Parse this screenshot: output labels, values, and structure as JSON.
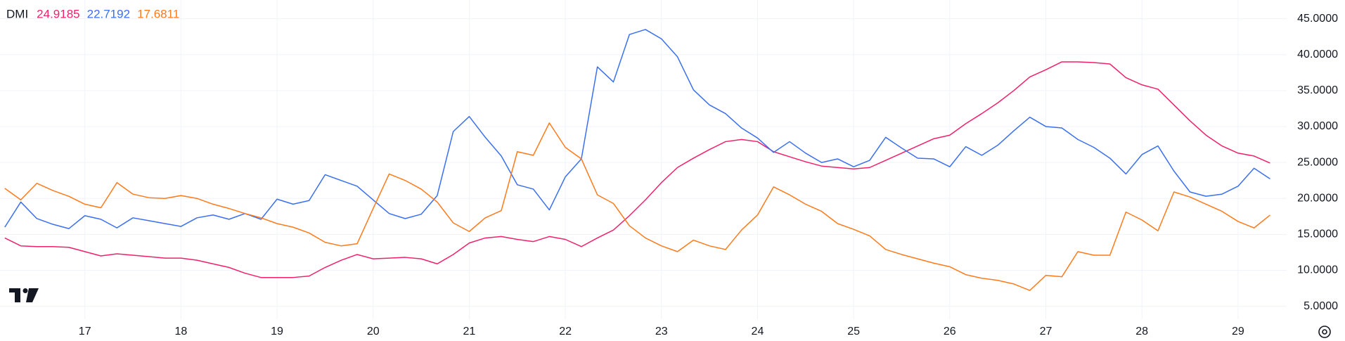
{
  "chart_data": {
    "type": "line",
    "title": "DMI",
    "categories": [
      null,
      null,
      null,
      null,
      null,
      "17",
      null,
      null,
      null,
      null,
      null,
      "18",
      null,
      null,
      null,
      null,
      null,
      "19",
      null,
      null,
      null,
      null,
      null,
      "20",
      null,
      null,
      null,
      null,
      null,
      "21",
      null,
      null,
      null,
      null,
      null,
      "22",
      null,
      null,
      null,
      null,
      null,
      "23",
      null,
      null,
      null,
      null,
      null,
      "24",
      null,
      null,
      null,
      null,
      null,
      "25",
      null,
      null,
      null,
      null,
      null,
      "26",
      null,
      null,
      null,
      null,
      null,
      "27",
      null,
      null,
      null,
      null,
      null,
      "28",
      null,
      null,
      null,
      null,
      null,
      "29",
      null,
      null
    ],
    "series": [
      {
        "color": "#f0216a",
        "values": [
          14.5,
          13.4,
          13.3,
          13.3,
          13.2,
          12.6,
          12.0,
          12.3,
          12.1,
          11.9,
          11.7,
          11.7,
          11.4,
          10.9,
          10.4,
          9.6,
          9.0,
          9.0,
          9.0,
          9.2,
          10.4,
          11.4,
          12.2,
          11.6,
          11.7,
          11.8,
          11.6,
          10.9,
          12.2,
          13.8,
          14.5,
          14.7,
          14.3,
          14.0,
          14.7,
          14.3,
          13.3,
          14.5,
          15.6,
          17.6,
          19.8,
          22.2,
          24.3,
          25.6,
          26.8,
          27.9,
          28.2,
          27.9,
          26.5,
          25.8,
          25.1,
          24.5,
          24.3,
          24.1,
          24.3,
          25.3,
          26.3,
          27.3,
          28.3,
          28.8,
          30.4,
          31.8,
          33.3,
          35.0,
          36.9,
          37.9,
          39.0,
          39.0,
          38.9,
          38.7,
          36.8,
          35.8,
          35.2,
          33.0,
          30.8,
          28.8,
          27.3,
          26.3,
          25.9,
          24.9185
        ]
      },
      {
        "color": "#3a6ff0",
        "values": [
          16.0,
          19.5,
          17.2,
          16.4,
          15.8,
          17.6,
          17.1,
          15.9,
          17.3,
          16.9,
          16.5,
          16.1,
          17.3,
          17.7,
          17.1,
          17.9,
          17.1,
          19.9,
          19.2,
          19.7,
          23.3,
          22.5,
          21.7,
          19.8,
          17.9,
          17.2,
          17.8,
          20.4,
          29.3,
          31.4,
          28.5,
          25.9,
          21.9,
          21.3,
          18.4,
          23.0,
          25.5,
          38.3,
          36.2,
          42.8,
          43.5,
          42.2,
          39.7,
          35.1,
          33.0,
          31.8,
          29.8,
          28.4,
          26.4,
          27.9,
          26.3,
          25.0,
          25.5,
          24.4,
          25.3,
          28.5,
          27.0,
          25.6,
          25.5,
          24.4,
          27.2,
          26.0,
          27.4,
          29.4,
          31.3,
          30.0,
          29.8,
          28.2,
          27.1,
          25.6,
          23.4,
          26.1,
          27.3,
          23.8,
          20.9,
          20.3,
          20.6,
          21.7,
          24.2,
          22.7192
        ]
      },
      {
        "color": "#ff7a1a",
        "values": [
          21.4,
          19.8,
          22.1,
          21.1,
          20.3,
          19.2,
          18.7,
          22.2,
          20.6,
          20.1,
          20.0,
          20.4,
          20.0,
          19.2,
          18.6,
          17.9,
          17.3,
          16.5,
          16.0,
          15.2,
          13.9,
          13.4,
          13.7,
          18.6,
          23.4,
          22.5,
          21.3,
          19.5,
          16.6,
          15.4,
          17.3,
          18.3,
          26.5,
          26.0,
          30.5,
          27.1,
          25.5,
          20.5,
          19.3,
          16.2,
          14.5,
          13.4,
          12.6,
          14.2,
          13.4,
          12.9,
          15.6,
          17.7,
          21.6,
          20.5,
          19.2,
          18.2,
          16.5,
          15.7,
          14.8,
          12.9,
          12.2,
          11.6,
          11.0,
          10.5,
          9.4,
          8.9,
          8.6,
          8.1,
          7.2,
          9.3,
          9.1,
          12.6,
          12.1,
          12.1,
          18.1,
          17.0,
          15.5,
          20.9,
          20.2,
          19.2,
          18.2,
          16.8,
          15.9,
          17.6811
        ]
      }
    ],
    "ylim": [
      3.2,
      47.6
    ],
    "yticks": [
      {
        "value": 5,
        "label": "5.0000"
      },
      {
        "value": 10,
        "label": "10.0000"
      },
      {
        "value": 15,
        "label": "15.0000"
      },
      {
        "value": 20,
        "label": "20.0000"
      },
      {
        "value": 25,
        "label": "25.0000"
      },
      {
        "value": 30,
        "label": "30.0000"
      },
      {
        "value": 35,
        "label": "35.0000"
      },
      {
        "value": 40,
        "label": "40.0000"
      },
      {
        "value": 45,
        "label": "45.0000"
      }
    ],
    "grid": true
  }
}
